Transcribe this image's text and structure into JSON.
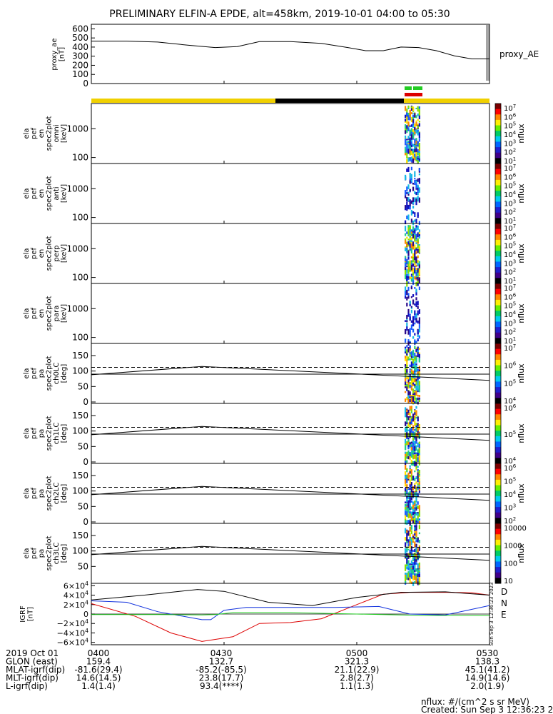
{
  "title": "PRELIMINARY ELFIN-A EPDE, alt=458km, 2019-10-01 04:00 to 05:30",
  "proxy_ae": {
    "ylabel": "proxy_ae\n[nT]",
    "side_label": "proxy_AE",
    "yticks": [
      "0",
      "100",
      "200",
      "300",
      "400",
      "500",
      "600"
    ]
  },
  "status_bars": {
    "top_color": "#22cc22",
    "middle_color": "#dd0000",
    "band_colors": [
      "#f0d000",
      "#000000",
      "#f0d000"
    ]
  },
  "energy_panels": [
    {
      "ylabel": "ela\npef\nen\nspec2plot\nomni\n[keV]",
      "yticks": [
        "1000",
        "100"
      ],
      "colorbar_label": "nflux",
      "cb_ticks": [
        "10^7",
        "10^6",
        "10^5",
        "10^4",
        "10^3",
        "10^2",
        "10^1"
      ]
    },
    {
      "ylabel": "ela\npef\nen\nspec2plot\nanti\n[keV]",
      "yticks": [
        "1000",
        "100"
      ],
      "colorbar_label": "nflux",
      "cb_ticks": [
        "10^7",
        "10^6",
        "10^5",
        "10^4",
        "10^3",
        "10^2",
        "10^1"
      ]
    },
    {
      "ylabel": "ela\npef\nen\nspec2plot\nperp\n[keV]",
      "yticks": [
        "1000",
        "100"
      ],
      "colorbar_label": "nflux",
      "cb_ticks": [
        "10^7",
        "10^6",
        "10^5",
        "10^4",
        "10^3",
        "10^2",
        "10^1"
      ]
    },
    {
      "ylabel": "ela\npef\nen\nspec2plot\npara\n[keV]",
      "yticks": [
        "1000",
        "100"
      ],
      "colorbar_label": "nflux",
      "cb_ticks": [
        "10^7",
        "10^6",
        "10^5",
        "10^4",
        "10^3",
        "10^2",
        "10^1"
      ]
    }
  ],
  "pitch_panels": [
    {
      "ylabel": "ela\npef\npa\nspec2plot\nch0LC\n[deg]",
      "yticks": [
        "150",
        "100",
        "50",
        "0"
      ],
      "colorbar_label": "nflux",
      "cb_ticks": [
        "10^7",
        "10^6",
        "10^5",
        "10^4"
      ]
    },
    {
      "ylabel": "ela\npef\npa\nspec2plot\nch1LC\n[deg]",
      "yticks": [
        "150",
        "100",
        "50",
        "0"
      ],
      "colorbar_label": "nflux",
      "cb_ticks": [
        "10^6",
        "10^5",
        "10^4"
      ]
    },
    {
      "ylabel": "ela\npef\npa\nspec2plot\nch2LC\n[deg]",
      "yticks": [
        "150",
        "100",
        "50",
        "0"
      ],
      "colorbar_label": "nflux",
      "cb_ticks": [
        "10^6",
        "10^5",
        "10^4",
        "10^3",
        "10^2"
      ]
    },
    {
      "ylabel": "ela\npef\npa\nspec2plot\nch3LC\n[deg]",
      "yticks": [
        "150",
        "100",
        "50"
      ],
      "colorbar_label": "nflux",
      "cb_ticks": [
        "10000",
        "1000",
        "100",
        "10"
      ]
    }
  ],
  "igrf": {
    "ylabel": "IGRF\n[nT]",
    "yticks": [
      "6×10^4",
      "4×10^4",
      "2×10^4",
      "0",
      "−2×10^4",
      "−4×10^4",
      "−6×10^4"
    ],
    "legend": [
      {
        "name": "D",
        "color": "#dd0000"
      },
      {
        "name": "N",
        "color": "#1030dd"
      },
      {
        "name": "E",
        "color": "#22cc22"
      }
    ],
    "side_note": "Sun Sep 3 12:36:23 2023"
  },
  "footer": {
    "rows": [
      [
        "2019 Oct 01",
        "0400",
        "0430",
        "0500",
        "0530"
      ],
      [
        "GLON (east)",
        "159.4",
        "132.7",
        "321.3",
        "138.3"
      ],
      [
        "MLAT-igrf(dip)",
        "-81.6(29.4)",
        "-85.2(-85.5)",
        "21.1(22.9)",
        "45.1(41.2)"
      ],
      [
        "MLT-igrf(dip)",
        "14.6(14.5)",
        "23.8(17.7)",
        "2.8(2.7)",
        "14.9(14.6)"
      ],
      [
        "L-igrf(dip)",
        "1.4(1.4)",
        "93.4(****)",
        "1.1(1.3)",
        "2.0(1.9)"
      ]
    ],
    "units": "nflux: #/(cm^2 s sr MeV)",
    "created": "Created: Sun Sep  3 12:36:23 2023"
  },
  "chart_data": {
    "type": "line",
    "title": "PRELIMINARY ELFIN-A EPDE, alt=458km, 2019-10-01 04:00 to 05:30",
    "x_unit": "UT minutes after 04:00",
    "xlim": [
      0,
      90
    ],
    "xticks": [
      "0400",
      "0430",
      "0500",
      "0530"
    ],
    "proxy_ae": {
      "ylim": [
        0,
        650
      ],
      "x": [
        0,
        8,
        15,
        22,
        28,
        33,
        38,
        45,
        52,
        58,
        62,
        66,
        70,
        74,
        78,
        82,
        86,
        90
      ],
      "y": [
        465,
        465,
        455,
        420,
        395,
        405,
        460,
        460,
        440,
        395,
        360,
        360,
        400,
        395,
        360,
        305,
        270,
        270
      ]
    },
    "pitch_lines": {
      "x": [
        0,
        25,
        90
      ],
      "loss_cone_line_deg": [
        112,
        112,
        112
      ],
      "local_90_line_deg": [
        90,
        90,
        90
      ],
      "curve_deg": [
        88,
        115,
        70
      ]
    },
    "igrf": {
      "ylim": [
        -65000,
        65000
      ],
      "series": [
        {
          "name": "D",
          "x": [
            0,
            10,
            18,
            25,
            32,
            38,
            45,
            52,
            60,
            66,
            72,
            80,
            86,
            90
          ],
          "y": [
            22000,
            -5000,
            -40000,
            -58000,
            -48000,
            -20000,
            -18000,
            -10000,
            20000,
            42000,
            46000,
            46000,
            45000,
            40000
          ]
        },
        {
          "name": "N",
          "x": [
            0,
            8,
            15,
            25,
            27,
            30,
            35,
            45,
            55,
            65,
            72,
            80,
            85,
            90
          ],
          "y": [
            28000,
            25000,
            5000,
            -12000,
            -12000,
            8000,
            14000,
            14000,
            14000,
            16000,
            0,
            -2000,
            8000,
            18000
          ]
        },
        {
          "name": "E",
          "x": [
            0,
            15,
            25,
            28,
            32,
            45,
            60,
            75,
            90
          ],
          "y": [
            -1000,
            -1000,
            -2000,
            -1000,
            3000,
            3000,
            0,
            -3000,
            -3000
          ]
        },
        {
          "name": "total",
          "x": [
            0,
            12,
            24,
            30,
            40,
            50,
            60,
            70,
            80,
            90
          ],
          "y": [
            30000,
            40000,
            52000,
            48000,
            25000,
            18000,
            35000,
            46000,
            47000,
            40000
          ]
        }
      ]
    }
  }
}
